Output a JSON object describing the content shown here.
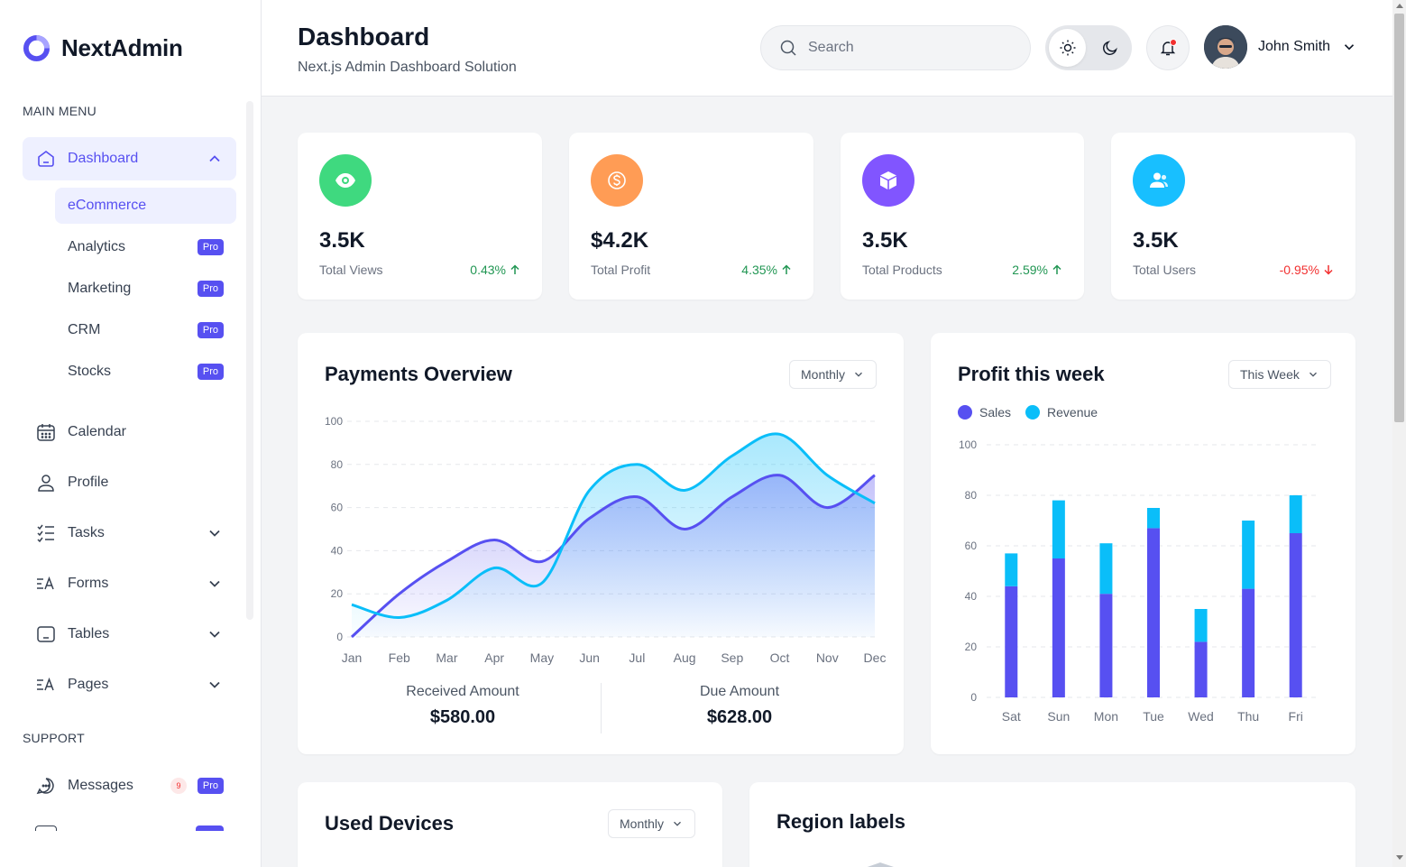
{
  "brand": {
    "name": "NextAdmin",
    "accent": "#5750f1"
  },
  "sidebar": {
    "main_menu_title": "MAIN MENU",
    "support_title": "SUPPORT",
    "dashboard": {
      "label": "Dashboard",
      "icon": "home-icon"
    },
    "dashboard_sub": [
      {
        "label": "eCommerce",
        "pro": ""
      },
      {
        "label": "Analytics",
        "pro": "Pro"
      },
      {
        "label": "Marketing",
        "pro": "Pro"
      },
      {
        "label": "CRM",
        "pro": "Pro"
      },
      {
        "label": "Stocks",
        "pro": "Pro"
      }
    ],
    "items": [
      {
        "label": "Calendar",
        "icon": "calendar-icon"
      },
      {
        "label": "Profile",
        "icon": "user-icon"
      },
      {
        "label": "Tasks",
        "icon": "tasks-icon"
      },
      {
        "label": "Forms",
        "icon": "forms-icon"
      },
      {
        "label": "Tables",
        "icon": "tables-icon"
      },
      {
        "label": "Pages",
        "icon": "pages-icon"
      }
    ],
    "support": [
      {
        "label": "Messages",
        "icon": "chat-icon",
        "count": "9",
        "pro": "Pro"
      }
    ]
  },
  "header": {
    "title": "Dashboard",
    "subtitle": "Next.js Admin Dashboard Solution",
    "search_placeholder": "Search",
    "user_name": "John Smith"
  },
  "stats": [
    {
      "value": "3.5K",
      "label": "Total Views",
      "change": "0.43%",
      "direction": "up",
      "color": "#3fd97f",
      "icon": "eye-icon"
    },
    {
      "value": "$4.2K",
      "label": "Total Profit",
      "change": "4.35%",
      "direction": "up",
      "color": "#ff9c55",
      "icon": "dollar-icon"
    },
    {
      "value": "3.5K",
      "label": "Total Products",
      "change": "2.59%",
      "direction": "up",
      "color": "#8155ff",
      "icon": "box-icon"
    },
    {
      "value": "3.5K",
      "label": "Total Users",
      "change": "-0.95%",
      "direction": "down",
      "color": "#18bfff",
      "icon": "users-icon"
    }
  ],
  "payments": {
    "title": "Payments Overview",
    "period": "Monthly",
    "received_label": "Received Amount",
    "received_value": "$580.00",
    "due_label": "Due Amount",
    "due_value": "$628.00"
  },
  "profit": {
    "title": "Profit this week",
    "period": "This Week"
  },
  "used_devices": {
    "title": "Used Devices",
    "period": "Monthly"
  },
  "region": {
    "title": "Region labels"
  },
  "chart_data": [
    {
      "type": "area",
      "title": "Payments Overview",
      "categories": [
        "Jan",
        "Feb",
        "Mar",
        "Apr",
        "May",
        "Jun",
        "Jul",
        "Aug",
        "Sep",
        "Oct",
        "Nov",
        "Dec"
      ],
      "ylim": [
        0,
        100
      ],
      "yticks": [
        0,
        20,
        40,
        60,
        80,
        100
      ],
      "series": [
        {
          "name": "Received Amount",
          "color": "#5750f1",
          "values": [
            0,
            20,
            35,
            45,
            35,
            55,
            65,
            50,
            65,
            75,
            60,
            75
          ]
        },
        {
          "name": "Due Amount",
          "color": "#0abef9",
          "values": [
            15,
            9,
            17,
            32,
            25,
            68,
            80,
            68,
            84,
            94,
            75,
            62
          ]
        }
      ]
    },
    {
      "type": "bar",
      "stacked": true,
      "title": "Profit this week",
      "categories": [
        "Sat",
        "Sun",
        "Mon",
        "Tue",
        "Wed",
        "Thu",
        "Fri"
      ],
      "ylim": [
        0,
        100
      ],
      "yticks": [
        0,
        20,
        40,
        60,
        80,
        100
      ],
      "series": [
        {
          "name": "Sales",
          "color": "#5750f1",
          "values": [
            44,
            55,
            41,
            67,
            22,
            43,
            65
          ]
        },
        {
          "name": "Revenue",
          "color": "#0abef9",
          "values": [
            13,
            23,
            20,
            8,
            13,
            27,
            15
          ]
        }
      ]
    }
  ]
}
